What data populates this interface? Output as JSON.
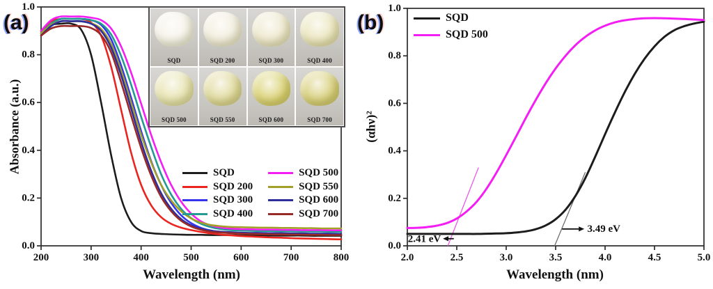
{
  "panels": {
    "a": {
      "label": "(a)",
      "xlabel": "Wavelength (nm)",
      "ylabel": "Absorbance (a.u.)"
    },
    "b": {
      "label": "(b)",
      "xlabel": "Wavelength (nm)",
      "ylabel": "(αhν)²"
    }
  },
  "inset": {
    "rows": 2,
    "cols": 4,
    "photos": [
      {
        "label": "SQD",
        "powder_color": "#f4f2e8"
      },
      {
        "label": "SQD 200",
        "powder_color": "#f1ecdb"
      },
      {
        "label": "SQD 300",
        "powder_color": "#ede7ca"
      },
      {
        "label": "SQD 400",
        "powder_color": "#eae4ba"
      },
      {
        "label": "SQD 500",
        "powder_color": "#e6e2ac"
      },
      {
        "label": "SQD 550",
        "powder_color": "#ded796"
      },
      {
        "label": "SQD 600",
        "powder_color": "#d9d06e"
      },
      {
        "label": "SQD 700",
        "powder_color": "#d6cd74"
      }
    ]
  },
  "chart_data": [
    {
      "id": "a",
      "type": "line",
      "title": "",
      "xlabel": "Wavelength (nm)",
      "ylabel": "Absorbance (a.u.)",
      "xlim": [
        200,
        800
      ],
      "ylim": [
        0.0,
        1.0
      ],
      "xticks": [
        200,
        300,
        400,
        500,
        600,
        700,
        800
      ],
      "xtick_labels": [
        "200",
        "300",
        "400",
        "500",
        "600",
        "700",
        "800"
      ],
      "yticks": [
        0.0,
        0.2,
        0.4,
        0.6,
        0.8,
        1.0
      ],
      "ytick_labels": [
        "0.0",
        "0.2",
        "0.4",
        "0.6",
        "0.8",
        "1.0"
      ],
      "grid": false,
      "legend_position": "inside lower-right, two columns",
      "x": [
        200,
        220,
        240,
        260,
        280,
        300,
        320,
        340,
        360,
        380,
        400,
        420,
        440,
        460,
        480,
        500,
        520,
        540,
        560,
        580,
        600,
        620,
        640,
        660,
        680,
        700,
        720,
        740,
        760,
        780,
        800
      ],
      "series": [
        {
          "name": "SQD",
          "color": "#1c1c1c",
          "values": [
            0.9,
            0.925,
            0.93,
            0.93,
            0.905,
            0.8,
            0.6,
            0.38,
            0.2,
            0.1,
            0.062,
            0.053,
            0.05,
            0.048,
            0.047,
            0.046,
            0.046,
            0.045,
            0.045,
            0.045,
            0.044,
            0.044,
            0.044,
            0.043,
            0.043,
            0.043,
            0.043,
            0.042,
            0.042,
            0.042,
            0.042
          ]
        },
        {
          "name": "SQD 200",
          "color": "#ea241f",
          "values": [
            0.9,
            0.94,
            0.95,
            0.95,
            0.95,
            0.935,
            0.88,
            0.75,
            0.57,
            0.39,
            0.255,
            0.17,
            0.12,
            0.092,
            0.076,
            0.066,
            0.058,
            0.052,
            0.047,
            0.044,
            0.041,
            0.039,
            0.037,
            0.035,
            0.034,
            0.032,
            0.031,
            0.03,
            0.029,
            0.028,
            0.027
          ]
        },
        {
          "name": "SQD 300",
          "color": "#3434ec",
          "values": [
            0.89,
            0.93,
            0.95,
            0.95,
            0.95,
            0.945,
            0.925,
            0.865,
            0.755,
            0.62,
            0.48,
            0.355,
            0.255,
            0.18,
            0.128,
            0.095,
            0.075,
            0.064,
            0.058,
            0.055,
            0.053,
            0.052,
            0.051,
            0.051,
            0.05,
            0.05,
            0.049,
            0.049,
            0.049,
            0.048,
            0.048
          ]
        },
        {
          "name": "SQD 400",
          "color": "#259a92",
          "values": [
            0.89,
            0.93,
            0.95,
            0.95,
            0.95,
            0.945,
            0.93,
            0.885,
            0.795,
            0.675,
            0.54,
            0.415,
            0.3,
            0.215,
            0.155,
            0.116,
            0.092,
            0.078,
            0.07,
            0.066,
            0.064,
            0.063,
            0.062,
            0.062,
            0.061,
            0.061,
            0.06,
            0.06,
            0.06,
            0.059,
            0.059
          ]
        },
        {
          "name": "SQD 500",
          "color": "#f41ef4",
          "values": [
            0.9,
            0.945,
            0.96,
            0.96,
            0.96,
            0.955,
            0.945,
            0.91,
            0.835,
            0.725,
            0.595,
            0.465,
            0.35,
            0.255,
            0.185,
            0.135,
            0.102,
            0.085,
            0.076,
            0.072,
            0.07,
            0.069,
            0.068,
            0.068,
            0.067,
            0.067,
            0.066,
            0.066,
            0.066,
            0.065,
            0.065
          ]
        },
        {
          "name": "SQD 550",
          "color": "#a3a029",
          "values": [
            0.89,
            0.925,
            0.94,
            0.94,
            0.94,
            0.932,
            0.908,
            0.845,
            0.735,
            0.6,
            0.465,
            0.35,
            0.255,
            0.19,
            0.145,
            0.115,
            0.097,
            0.087,
            0.082,
            0.079,
            0.078,
            0.077,
            0.076,
            0.076,
            0.075,
            0.075,
            0.074,
            0.074,
            0.073,
            0.073,
            0.073
          ]
        },
        {
          "name": "SQD 600",
          "color": "#2d2d9c",
          "values": [
            0.88,
            0.92,
            0.94,
            0.94,
            0.94,
            0.93,
            0.9,
            0.83,
            0.715,
            0.575,
            0.435,
            0.315,
            0.22,
            0.155,
            0.112,
            0.086,
            0.071,
            0.063,
            0.059,
            0.057,
            0.055,
            0.054,
            0.054,
            0.053,
            0.053,
            0.052,
            0.052,
            0.051,
            0.051,
            0.051,
            0.05
          ]
        },
        {
          "name": "SQD 700",
          "color": "#982a27",
          "values": [
            0.88,
            0.91,
            0.92,
            0.92,
            0.92,
            0.912,
            0.882,
            0.81,
            0.685,
            0.545,
            0.41,
            0.295,
            0.205,
            0.145,
            0.105,
            0.081,
            0.067,
            0.059,
            0.055,
            0.053,
            0.051,
            0.05,
            0.049,
            0.048,
            0.048,
            0.047,
            0.047,
            0.046,
            0.046,
            0.045,
            0.045
          ]
        }
      ]
    },
    {
      "id": "b",
      "type": "line",
      "title": "",
      "xlabel": "Wavelength (nm)",
      "ylabel": "(αhν)²",
      "xlim": [
        2.0,
        5.0
      ],
      "ylim": [
        0.0,
        1.0
      ],
      "xticks": [
        2.0,
        2.5,
        3.0,
        3.5,
        4.0,
        4.5,
        5.0
      ],
      "xtick_labels": [
        "2.0",
        "2.5",
        "3.0",
        "3.5",
        "4.0",
        "4.5",
        "5.0"
      ],
      "yticks": [
        0.0,
        0.2,
        0.4,
        0.6,
        0.8,
        1.0
      ],
      "ytick_labels": [
        "0.0",
        "0.2",
        "0.4",
        "0.6",
        "0.8",
        "1.0"
      ],
      "grid": false,
      "legend_position": "inside upper-left",
      "x": [
        2.0,
        2.1,
        2.2,
        2.3,
        2.4,
        2.5,
        2.6,
        2.7,
        2.8,
        2.9,
        3.0,
        3.1,
        3.2,
        3.3,
        3.4,
        3.5,
        3.6,
        3.7,
        3.8,
        3.9,
        4.0,
        4.1,
        4.2,
        4.3,
        4.4,
        4.5,
        4.6,
        4.7,
        4.8,
        4.9,
        5.0
      ],
      "series": [
        {
          "name": "SQD",
          "color": "#1c1c1c",
          "values": [
            0.05,
            0.05,
            0.05,
            0.05,
            0.05,
            0.05,
            0.05,
            0.05,
            0.051,
            0.052,
            0.053,
            0.056,
            0.061,
            0.07,
            0.086,
            0.112,
            0.152,
            0.21,
            0.285,
            0.375,
            0.47,
            0.562,
            0.648,
            0.724,
            0.788,
            0.84,
            0.88,
            0.908,
            0.925,
            0.936,
            0.944
          ]
        },
        {
          "name": "SQD 500",
          "color": "#f41ef4",
          "values": [
            0.075,
            0.076,
            0.079,
            0.085,
            0.096,
            0.115,
            0.145,
            0.185,
            0.24,
            0.307,
            0.382,
            0.46,
            0.54,
            0.615,
            0.685,
            0.747,
            0.8,
            0.845,
            0.88,
            0.907,
            0.927,
            0.941,
            0.95,
            0.955,
            0.958,
            0.959,
            0.958,
            0.957,
            0.955,
            0.953,
            0.951
          ]
        }
      ],
      "tangent_lines": [
        {
          "color": "#e85ae8",
          "x1": 2.41,
          "y1": 0.0,
          "x2": 2.72,
          "y2": 0.33
        },
        {
          "color": "#6e6e6e",
          "x1": 3.49,
          "y1": 0.0,
          "x2": 3.8,
          "y2": 0.31
        }
      ],
      "annotations": [
        {
          "text": "2.41 eV",
          "color": "#f318f3",
          "text_x": 2.005,
          "text_y": 0.028,
          "anchor": "start",
          "arrow": {
            "from_x": 2.47,
            "to_x": 2.36,
            "y": 0.03,
            "color": "#111111"
          }
        },
        {
          "text": "3.49 eV",
          "color": "#111111",
          "text_x": 3.82,
          "text_y": 0.071,
          "anchor": "start",
          "arrow": {
            "from_x": 3.565,
            "to_x": 3.79,
            "y": 0.071,
            "color": "#111111"
          }
        }
      ],
      "band_gaps_eV": {
        "SQD": 3.49,
        "SQD 500": 2.41
      }
    }
  ]
}
